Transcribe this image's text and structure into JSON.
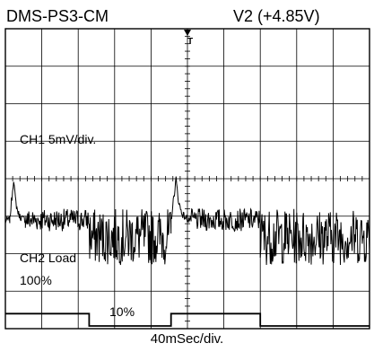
{
  "header": {
    "model": "DMS-PS3-CM",
    "rail": "V2 (+4.85V)"
  },
  "chart_data": {
    "type": "line",
    "title": "",
    "grid": true,
    "xlabel": "40mSec/div.",
    "x_divisions": 10,
    "y_divisions": 8,
    "trigger_marker": "T",
    "series": [
      {
        "name": "CH1",
        "label_text": "CH1  5mV/div.",
        "kind": "output ripple",
        "segments": [
          {
            "x": [
              0.0,
              0.12
            ],
            "state": "flat",
            "noise": 0.1
          },
          {
            "x": [
              0.12,
              0.55
            ],
            "state": "overshoot",
            "peak": 1.1
          },
          {
            "x": [
              0.55,
              2.3
            ],
            "state": "settled",
            "noise": 0.3
          },
          {
            "x": [
              2.3,
              4.55
            ],
            "state": "noisy",
            "offset": -0.45,
            "noise": 0.75
          },
          {
            "x": [
              4.55,
              5.1
            ],
            "state": "overshoot",
            "peak": 1.1
          },
          {
            "x": [
              5.1,
              7.0
            ],
            "state": "settled",
            "noise": 0.3
          },
          {
            "x": [
              7.0,
              10.0
            ],
            "state": "noisy",
            "offset": -0.45,
            "noise": 0.75
          }
        ]
      },
      {
        "name": "CH2",
        "label_text": "CH2  Load",
        "kind": "load step",
        "levels": {
          "high": "100%",
          "low": "10%"
        },
        "segments": [
          {
            "x": [
              0.0,
              2.3
            ],
            "level": "100%"
          },
          {
            "x": [
              2.3,
              4.55
            ],
            "level": "10%"
          },
          {
            "x": [
              4.55,
              7.0
            ],
            "level": "100%"
          },
          {
            "x": [
              7.0,
              10.0
            ],
            "level": "10%"
          }
        ]
      }
    ]
  }
}
